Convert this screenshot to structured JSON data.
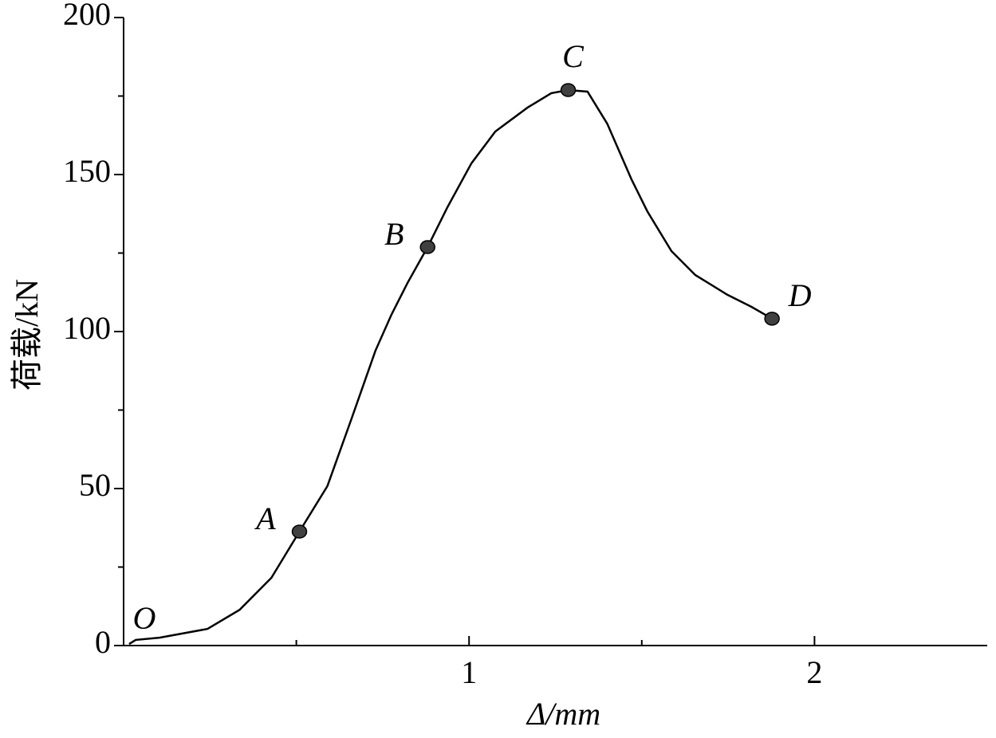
{
  "chart_data": {
    "type": "line",
    "xlabel": "Δ/mm",
    "ylabel": "荷载/kN",
    "x": [
      0.016,
      0.035,
      0.104,
      0.243,
      0.336,
      0.428,
      0.509,
      0.59,
      0.66,
      0.729,
      0.775,
      0.822,
      0.88,
      0.9375,
      1.007,
      1.076,
      1.169,
      1.238,
      1.287,
      1.343,
      1.4,
      1.47,
      1.516,
      1.586,
      1.655,
      1.748,
      1.817,
      1.877
    ],
    "series": [
      {
        "color": "#000000",
        "values": [
          0.5,
          1.8,
          2.5,
          5.3,
          11.4,
          21.6,
          36.3,
          50.8,
          72.3,
          93.9,
          105.3,
          115.5,
          126.9,
          139.6,
          153.6,
          163.7,
          171.3,
          175.9,
          176.9,
          176.4,
          166.2,
          148.5,
          138.3,
          125.6,
          118,
          111.7,
          107.9,
          104.1
        ]
      }
    ],
    "points": {
      "labels": [
        "A",
        "B",
        "C",
        "D"
      ],
      "x": [
        0.509,
        0.88,
        1.287,
        1.877
      ],
      "y": [
        36.3,
        126.9,
        176.9,
        104.1
      ],
      "color": "#404040"
    },
    "origin_label": "O",
    "xlim": [
      0,
      2.5
    ],
    "xticks": [
      1,
      2
    ],
    "xminor": [
      0.5,
      1.5
    ],
    "ylim": [
      0,
      200
    ],
    "yticks": [
      0,
      50,
      100,
      150,
      200
    ],
    "yminor": [
      25,
      75,
      125,
      175
    ],
    "grid": false
  }
}
